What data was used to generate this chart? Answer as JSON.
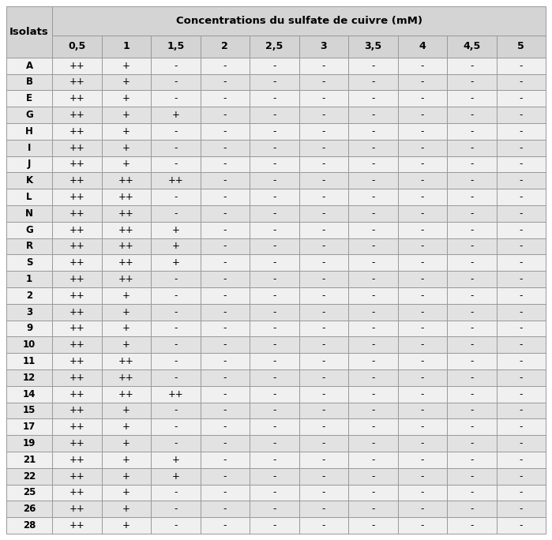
{
  "title": "Concentrations du sulfate de cuivre (mM)",
  "col_headers": [
    "0,5",
    "1",
    "1,5",
    "2",
    "2,5",
    "3",
    "3,5",
    "4",
    "4,5",
    "5"
  ],
  "row_header": "Isolats",
  "rows": [
    [
      "A",
      "++",
      "+",
      "-",
      "-",
      "-",
      "-",
      "-",
      "-",
      "-",
      "-"
    ],
    [
      "B",
      "++",
      "+",
      "-",
      "-",
      "-",
      "-",
      "-",
      "-",
      "-",
      "-"
    ],
    [
      "E",
      "++",
      "+",
      "-",
      "-",
      "-",
      "-",
      "-",
      "-",
      "-",
      "-"
    ],
    [
      "G",
      "++",
      "+",
      "+",
      "-",
      "-",
      "-",
      "-",
      "-",
      "-",
      "-"
    ],
    [
      "H",
      "++",
      "+",
      "-",
      "-",
      "-",
      "-",
      "-",
      "-",
      "-",
      "-"
    ],
    [
      "I",
      "++",
      "+",
      "-",
      "-",
      "-",
      "-",
      "-",
      "-",
      "-",
      "-"
    ],
    [
      "J",
      "++",
      "+",
      "-",
      "-",
      "-",
      "-",
      "-",
      "-",
      "-",
      "-"
    ],
    [
      "K",
      "++",
      "++",
      "++",
      "-",
      "-",
      "-",
      "-",
      "-",
      "-",
      "-"
    ],
    [
      "L",
      "++",
      "++",
      "-",
      "-",
      "-",
      "-",
      "-",
      "-",
      "-",
      "-"
    ],
    [
      "N",
      "++",
      "++",
      "-",
      "-",
      "-",
      "-",
      "-",
      "-",
      "-",
      "-"
    ],
    [
      "G",
      "++",
      "++",
      "+",
      "-",
      "-",
      "-",
      "-",
      "-",
      "-",
      "-"
    ],
    [
      "R",
      "++",
      "++",
      "+",
      "-",
      "-",
      "-",
      "-",
      "-",
      "-",
      "-"
    ],
    [
      "S",
      "++",
      "++",
      "+",
      "-",
      "-",
      "-",
      "-",
      "-",
      "-",
      "-"
    ],
    [
      "1",
      "++",
      "++",
      "-",
      "-",
      "-",
      "-",
      "-",
      "-",
      "-",
      "-"
    ],
    [
      "2",
      "++",
      "+",
      "-",
      "-",
      "-",
      "-",
      "-",
      "-",
      "-",
      "-"
    ],
    [
      "3",
      "++",
      "+",
      "-",
      "-",
      "-",
      "-",
      "-",
      "-",
      "-",
      "-"
    ],
    [
      "9",
      "++",
      "+",
      "-",
      "-",
      "-",
      "-",
      "-",
      "-",
      "-",
      "-"
    ],
    [
      "10",
      "++",
      "+",
      "-",
      "-",
      "-",
      "-",
      "-",
      "-",
      "-",
      "-"
    ],
    [
      "11",
      "++",
      "++",
      "-",
      "-",
      "-",
      "-",
      "-",
      "-",
      "-",
      "-"
    ],
    [
      "12",
      "++",
      "++",
      "-",
      "-",
      "-",
      "-",
      "-",
      "-",
      "-",
      "-"
    ],
    [
      "14",
      "++",
      "++",
      "++",
      "-",
      "-",
      "-",
      "-",
      "-",
      "-",
      "-"
    ],
    [
      "15",
      "++",
      "+",
      "-",
      "-",
      "-",
      "-",
      "-",
      "-",
      "-",
      "-"
    ],
    [
      "17",
      "++",
      "+",
      "-",
      "-",
      "-",
      "-",
      "-",
      "-",
      "-",
      "-"
    ],
    [
      "19",
      "++",
      "+",
      "-",
      "-",
      "-",
      "-",
      "-",
      "-",
      "-",
      "-"
    ],
    [
      "21",
      "++",
      "+",
      "+",
      "-",
      "-",
      "-",
      "-",
      "-",
      "-",
      "-"
    ],
    [
      "22",
      "++",
      "+",
      "+",
      "-",
      "-",
      "-",
      "-",
      "-",
      "-",
      "-"
    ],
    [
      "25",
      "++",
      "+",
      "-",
      "-",
      "-",
      "-",
      "-",
      "-",
      "-",
      "-"
    ],
    [
      "26",
      "++",
      "+",
      "-",
      "-",
      "-",
      "-",
      "-",
      "-",
      "-",
      "-"
    ],
    [
      "28",
      "++",
      "+",
      "-",
      "-",
      "-",
      "-",
      "-",
      "-",
      "-",
      "-"
    ]
  ],
  "header_bg": "#d4d4d4",
  "header2_bg": "#d4d4d4",
  "row_bg_even": "#f0f0f0",
  "row_bg_odd": "#e2e2e2",
  "border_color": "#999999",
  "text_color": "#000000",
  "font_size": 8.5,
  "header_font_size": 9.5,
  "subheader_font_size": 9.0,
  "fig_width": 6.99,
  "fig_height": 6.84,
  "dpi": 100
}
